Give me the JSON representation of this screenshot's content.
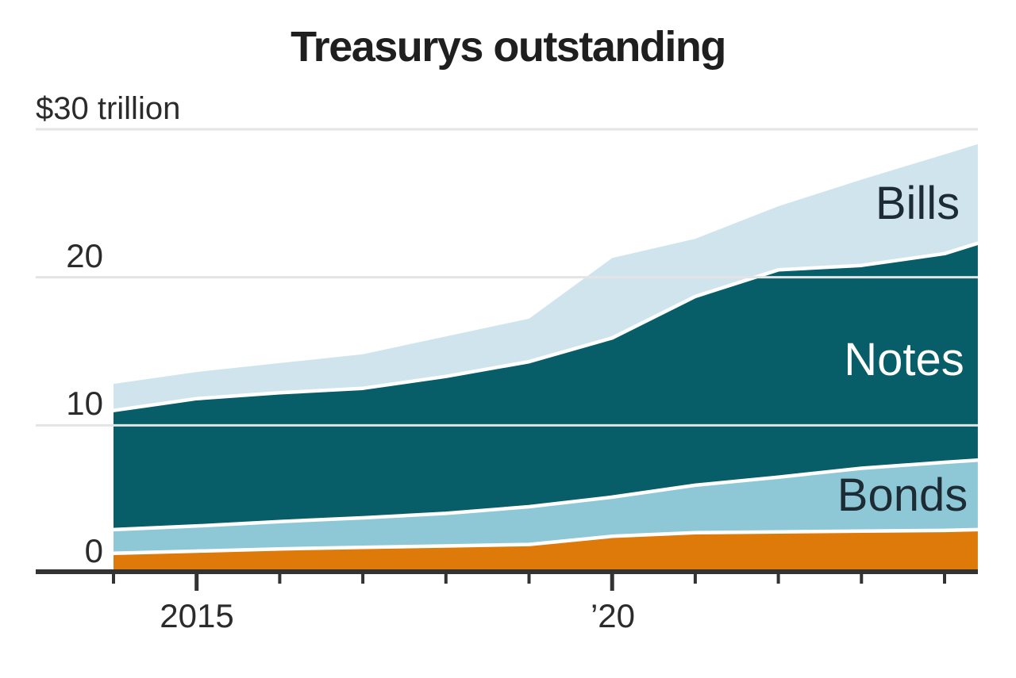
{
  "title": "Treasurys outstanding",
  "chart_data": {
    "type": "area",
    "stacked": true,
    "grid": true,
    "legend_position": "labels-on-areas",
    "x": [
      2014,
      2015,
      2016,
      2017,
      2018,
      2019,
      2020,
      2021,
      2022,
      2023,
      2024,
      2024.4
    ],
    "x_axis": {
      "tick_years": [
        2014,
        2015,
        2016,
        2017,
        2018,
        2019,
        2020,
        2021,
        2022,
        2023,
        2024
      ],
      "labels": [
        {
          "year": 2015,
          "text": "2015"
        },
        {
          "year": 2020,
          "text": "’20"
        }
      ]
    },
    "y_axis": {
      "unit": "trillion USD",
      "range": [
        0,
        30
      ],
      "top_label": "$30 trillion",
      "tick_labels": [
        "0",
        "10",
        "20"
      ],
      "gridline_values": [
        10,
        20,
        30
      ]
    },
    "series": [
      {
        "label": "",
        "color": "#dd7a0a",
        "values": [
          1.35,
          1.5,
          1.65,
          1.75,
          1.85,
          1.95,
          2.5,
          2.75,
          2.8,
          2.85,
          2.9,
          2.95
        ]
      },
      {
        "label": "Bonds",
        "color": "#8ec8d6",
        "values": [
          1.6,
          1.7,
          1.85,
          2.0,
          2.2,
          2.55,
          2.65,
          3.2,
          3.7,
          4.25,
          4.6,
          4.7
        ]
      },
      {
        "label": "Notes",
        "color": "#075d68",
        "values": [
          8.05,
          8.6,
          8.7,
          8.75,
          9.25,
          9.8,
          10.75,
          12.75,
          14.0,
          13.7,
          14.1,
          14.65
        ]
      },
      {
        "label": "Bills",
        "color": "#cfe4ed",
        "values": [
          1.8,
          1.8,
          2.0,
          2.3,
          2.7,
          2.9,
          5.4,
          3.9,
          4.3,
          5.8,
          6.7,
          6.7
        ]
      }
    ],
    "totals": [
      12.8,
      13.6,
      14.2,
      14.8,
      16.0,
      17.2,
      21.3,
      22.6,
      24.8,
      26.6,
      28.3,
      29.0
    ]
  },
  "colors": {
    "axis": "#333333",
    "grid": "#e2e4e5",
    "separator": "#ffffff",
    "title_text": "#1f1f1f",
    "tick_text": "#2b2b2b",
    "dark_label_text": "#1d2c34",
    "light_label_text": "#ffffff"
  }
}
